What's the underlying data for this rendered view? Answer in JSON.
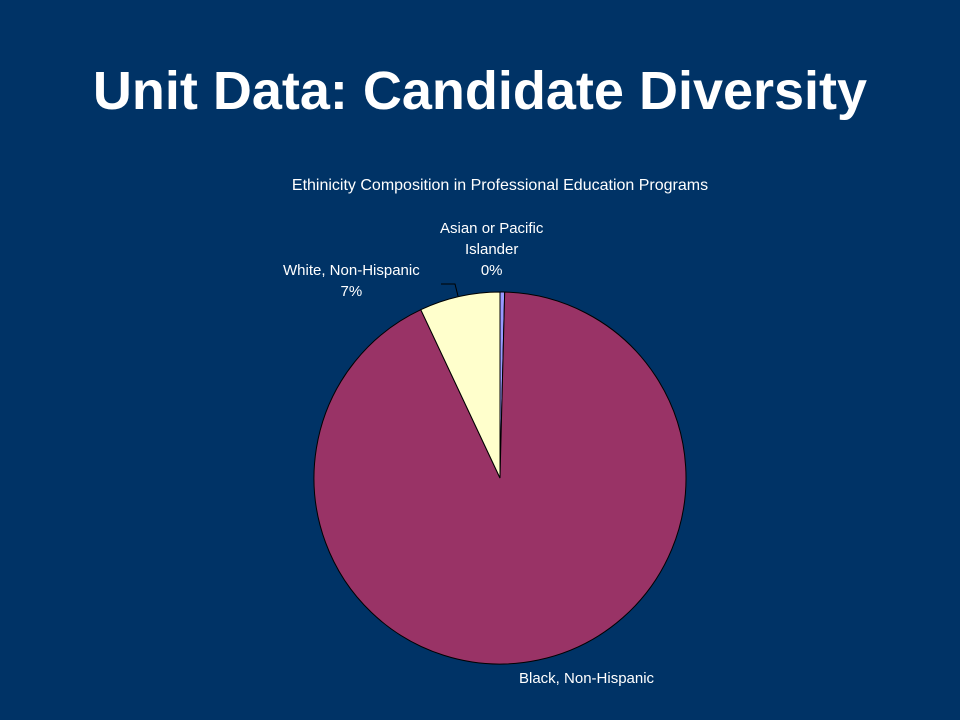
{
  "slide": {
    "title": "Unit Data: Candidate Diversity"
  },
  "chart_data": {
    "type": "pie",
    "title": "Ethinicity Composition in Professional Education Programs",
    "slices": [
      {
        "name": "Asian or Pacific Islander",
        "label_lines": [
          "Asian or Pacific",
          "Islander"
        ],
        "pct_label": "0%",
        "value": 0.4,
        "color": "#9999FF"
      },
      {
        "name": "Black, Non-Hispanic",
        "label_lines": [
          "Black, Non-Hispanic"
        ],
        "pct_label": "",
        "value": 92.6,
        "color": "#993366"
      },
      {
        "name": "White, Non-Hispanic",
        "label_lines": [
          "White, Non-Hispanic"
        ],
        "pct_label": "7%",
        "value": 7.0,
        "color": "#FFFFCC"
      }
    ],
    "legend": "none"
  }
}
